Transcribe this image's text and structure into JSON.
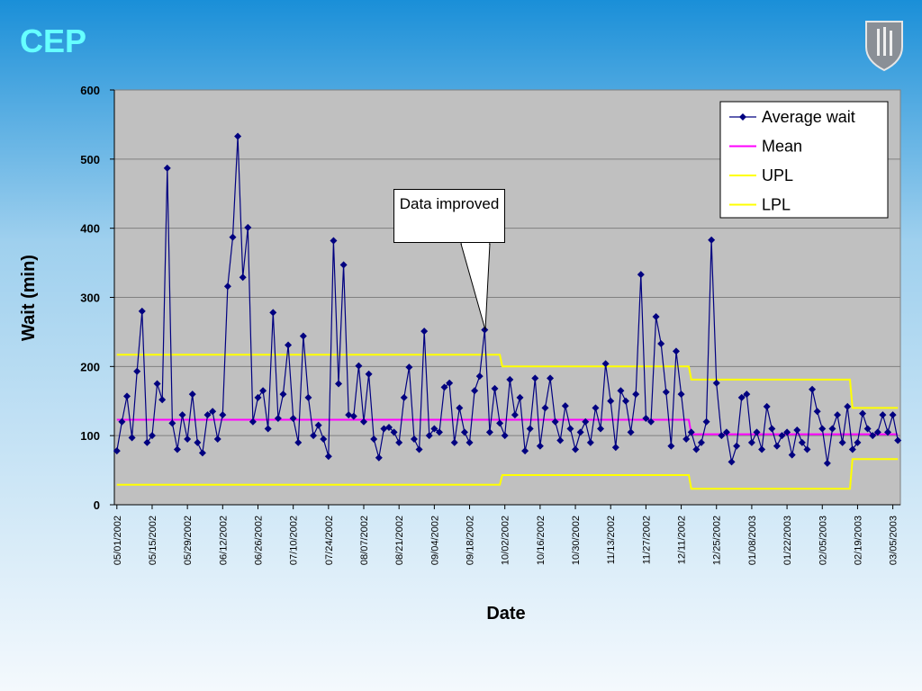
{
  "chart_data": {
    "type": "line",
    "title": "CEP",
    "xlabel": "Date",
    "ylabel": "Wait (min)",
    "annotation": "Data improved",
    "legend": "top-right",
    "grid": true,
    "plot_background": "#c0c0c0",
    "ylim": [
      0,
      600
    ],
    "yticks": [
      0,
      100,
      200,
      300,
      400,
      500,
      600
    ],
    "xlim": [
      "04/30/2002",
      "03/08/2003"
    ],
    "xticks": [
      "05/01/2002",
      "05/15/2002",
      "05/29/2002",
      "06/12/2002",
      "06/26/2002",
      "07/10/2002",
      "07/24/2002",
      "08/07/2002",
      "08/21/2002",
      "09/04/2002",
      "09/18/2002",
      "10/02/2002",
      "10/16/2002",
      "10/30/2002",
      "11/13/2002",
      "11/27/2002",
      "12/11/2002",
      "12/25/2002",
      "01/08/2003",
      "01/22/2003",
      "02/05/2003",
      "02/19/2003",
      "03/05/2003"
    ],
    "series": [
      {
        "name": "Average wait",
        "color": "#000080",
        "marker": "diamond",
        "x": [
          "05/01/2002",
          "05/03/2002",
          "05/05/2002",
          "05/07/2002",
          "05/09/2002",
          "05/11/2002",
          "05/13/2002",
          "05/15/2002",
          "05/17/2002",
          "05/19/2002",
          "05/21/2002",
          "05/23/2002",
          "05/25/2002",
          "05/27/2002",
          "05/29/2002",
          "05/31/2002",
          "06/02/2002",
          "06/04/2002",
          "06/06/2002",
          "06/08/2002",
          "06/10/2002",
          "06/12/2002",
          "06/14/2002",
          "06/16/2002",
          "06/18/2002",
          "06/20/2002",
          "06/22/2002",
          "06/24/2002",
          "06/26/2002",
          "06/28/2002",
          "06/30/2002",
          "07/02/2002",
          "07/04/2002",
          "07/06/2002",
          "07/08/2002",
          "07/10/2002",
          "07/12/2002",
          "07/14/2002",
          "07/16/2002",
          "07/18/2002",
          "07/20/2002",
          "07/22/2002",
          "07/24/2002",
          "07/26/2002",
          "07/28/2002",
          "07/30/2002",
          "08/01/2002",
          "08/03/2002",
          "08/05/2002",
          "08/07/2002",
          "08/09/2002",
          "08/11/2002",
          "08/13/2002",
          "08/15/2002",
          "08/17/2002",
          "08/19/2002",
          "08/21/2002",
          "08/23/2002",
          "08/25/2002",
          "08/27/2002",
          "08/29/2002",
          "08/31/2002",
          "09/02/2002",
          "09/04/2002",
          "09/06/2002",
          "09/08/2002",
          "09/10/2002",
          "09/12/2002",
          "09/14/2002",
          "09/16/2002",
          "09/18/2002",
          "09/20/2002",
          "09/22/2002",
          "09/24/2002",
          "09/26/2002",
          "09/28/2002",
          "09/30/2002",
          "10/02/2002",
          "10/04/2002",
          "10/06/2002",
          "10/08/2002",
          "10/10/2002",
          "10/12/2002",
          "10/14/2002",
          "10/16/2002",
          "10/18/2002",
          "10/20/2002",
          "10/22/2002",
          "10/24/2002",
          "10/26/2002",
          "10/28/2002",
          "10/30/2002",
          "11/01/2002",
          "11/03/2002",
          "11/05/2002",
          "11/07/2002",
          "11/09/2002",
          "11/11/2002",
          "11/13/2002",
          "11/15/2002",
          "11/17/2002",
          "11/19/2002",
          "11/21/2002",
          "11/23/2002",
          "11/25/2002",
          "11/27/2002",
          "11/29/2002",
          "12/01/2002",
          "12/03/2002",
          "12/05/2002",
          "12/07/2002",
          "12/09/2002",
          "12/11/2002",
          "12/13/2002",
          "12/15/2002",
          "12/17/2002",
          "12/19/2002",
          "12/21/2002",
          "12/23/2002",
          "12/25/2002",
          "12/27/2002",
          "12/29/2002",
          "12/31/2002",
          "01/02/2003",
          "01/04/2003",
          "01/06/2003",
          "01/08/2003",
          "01/10/2003",
          "01/12/2003",
          "01/14/2003",
          "01/16/2003",
          "01/18/2003",
          "01/20/2003",
          "01/22/2003",
          "01/24/2003",
          "01/26/2003",
          "01/28/2003",
          "01/30/2003",
          "02/01/2003",
          "02/03/2003",
          "02/05/2003",
          "02/07/2003",
          "02/09/2003",
          "02/11/2003",
          "02/13/2003",
          "02/15/2003",
          "02/17/2003",
          "02/19/2003",
          "02/21/2003",
          "02/23/2003",
          "02/25/2003",
          "02/27/2003",
          "03/01/2003",
          "03/03/2003",
          "03/05/2003",
          "03/07/2003"
        ],
        "values": [
          78,
          120,
          157,
          97,
          193,
          280,
          90,
          100,
          175,
          152,
          487,
          118,
          80,
          130,
          95,
          160,
          90,
          75,
          130,
          135,
          95,
          130,
          316,
          387,
          533,
          329,
          401,
          120,
          155,
          165,
          110,
          278,
          125,
          160,
          231,
          125,
          90,
          244,
          155,
          100,
          115,
          95,
          70,
          382,
          175,
          347,
          130,
          128,
          201,
          120,
          189,
          95,
          68,
          110,
          112,
          105,
          90,
          155,
          199,
          95,
          80,
          251,
          100,
          110,
          105,
          170,
          176,
          90,
          140,
          105,
          90,
          165,
          186,
          253,
          105,
          168,
          118,
          100,
          181,
          130,
          155,
          78,
          110,
          183,
          85,
          140,
          183,
          120,
          93,
          143,
          110,
          80,
          105,
          120,
          90,
          140,
          110,
          204,
          150,
          83,
          165,
          150,
          105,
          160,
          333,
          125,
          120,
          272,
          233,
          163,
          85,
          222,
          160,
          95,
          105,
          80,
          90,
          120,
          383,
          176,
          100,
          105,
          62,
          85,
          155,
          160,
          90,
          105,
          80,
          142,
          110,
          85,
          100,
          105,
          72,
          108,
          90,
          80,
          167,
          135,
          110,
          60,
          110,
          130,
          90,
          142,
          80,
          90,
          132,
          110,
          100,
          105,
          130,
          105,
          130,
          93
        ]
      },
      {
        "name": "Mean",
        "color": "#ff00ff",
        "marker": "none",
        "x": [
          "05/01/2002",
          "12/14/2002",
          "12/15/2002",
          "03/07/2003"
        ],
        "values": [
          123,
          123,
          102,
          102
        ]
      },
      {
        "name": "UPL",
        "color": "#ffff00",
        "marker": "none",
        "x": [
          "05/01/2002",
          "09/30/2002",
          "10/01/2002",
          "12/14/2002",
          "12/15/2002",
          "02/16/2003",
          "02/17/2003",
          "03/07/2003"
        ],
        "values": [
          217,
          217,
          200,
          200,
          181,
          181,
          140,
          140
        ]
      },
      {
        "name": "LPL",
        "color": "#ffff00",
        "marker": "none",
        "x": [
          "05/01/2002",
          "09/30/2002",
          "10/01/2002",
          "12/14/2002",
          "12/15/2002",
          "02/16/2003",
          "02/17/2003",
          "03/07/2003"
        ],
        "values": [
          29,
          29,
          43,
          43,
          23,
          23,
          66,
          66
        ]
      }
    ]
  }
}
